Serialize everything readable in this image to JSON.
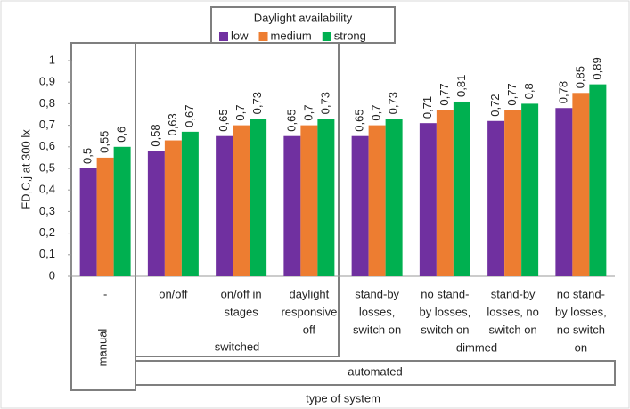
{
  "chart_data": {
    "type": "bar",
    "legend_title": "Daylight availability",
    "y_label": "FD,C,j at 300 lx",
    "x_label": "type of system",
    "category_groups": [
      "manual",
      "switched",
      "dimmed",
      "automated"
    ],
    "categories": [
      [
        "-"
      ],
      [
        "on/off"
      ],
      [
        "on/off in",
        "stages"
      ],
      [
        "daylight",
        "responsive",
        "off"
      ],
      [
        "stand-by",
        "losses,",
        "switch on"
      ],
      [
        "no stand-",
        "by losses,",
        "switch on"
      ],
      [
        "stand-by",
        "losses, no",
        "switch on"
      ],
      [
        "no stand-",
        "by losses,",
        "no switch",
        "on"
      ]
    ],
    "series": [
      {
        "name": "low",
        "color": "#7030a0",
        "values": [
          0.5,
          0.58,
          0.65,
          0.65,
          0.65,
          0.71,
          0.72,
          0.78
        ],
        "value_labels": [
          "0,5",
          "0,58",
          "0,65",
          "0,65",
          "0,65",
          "0,71",
          "0,72",
          "0,78"
        ]
      },
      {
        "name": "medium",
        "color": "#ed7d31",
        "values": [
          0.55,
          0.63,
          0.7,
          0.7,
          0.7,
          0.77,
          0.77,
          0.85
        ],
        "value_labels": [
          "0,55",
          "0,63",
          "0,7",
          "0,7",
          "0,7",
          "0,77",
          "0,77",
          "0,85"
        ]
      },
      {
        "name": "strong",
        "color": "#00b050",
        "values": [
          0.6,
          0.67,
          0.73,
          0.73,
          0.73,
          0.81,
          0.8,
          0.89
        ],
        "value_labels": [
          "0,6",
          "0,67",
          "0,73",
          "0,73",
          "0,73",
          "0,81",
          "0,8",
          "0,89"
        ]
      }
    ],
    "ylim": [
      0,
      1
    ],
    "yticks": [
      0,
      {
        "value": 0.1,
        "label": "0,1"
      },
      {
        "value": 0.2,
        "label": "0,2"
      },
      {
        "value": 0.3,
        "label": "0,3"
      },
      {
        "value": 0.4,
        "label": "0,4"
      },
      {
        "value": 0.5,
        "label": "0,5"
      },
      {
        "value": 0.6,
        "label": "0,6"
      },
      {
        "value": 0.7,
        "label": "0,7"
      },
      {
        "value": 0.8,
        "label": "0,8"
      },
      {
        "value": 0.9,
        "label": "0,9"
      },
      1
    ],
    "grid": false
  }
}
